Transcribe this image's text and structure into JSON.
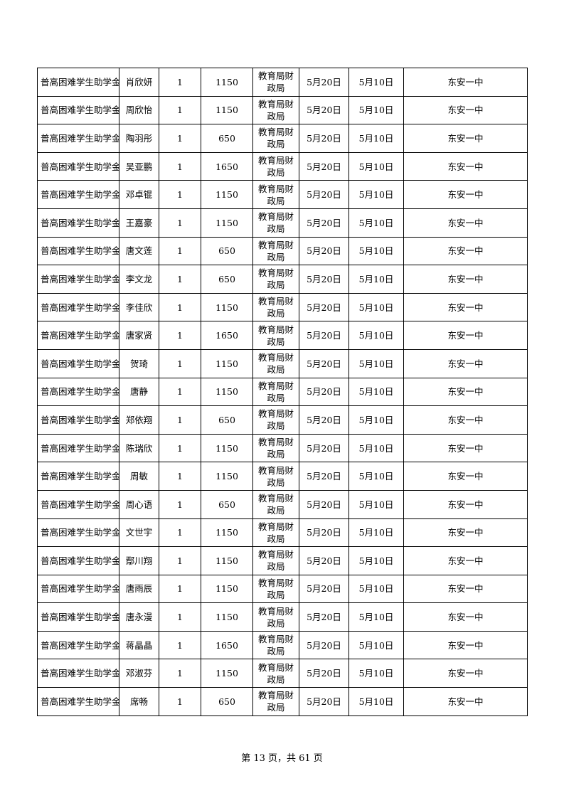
{
  "table": {
    "rows": [
      {
        "project": "普高困难学生助学金",
        "name": "肖欣妍",
        "count": "1",
        "amount": "1150",
        "dept_line1": "教育局财",
        "dept_line2": "政局",
        "date1": "5月20日",
        "date2": "5月10日",
        "school": "东安一中"
      },
      {
        "project": "普高困难学生助学金",
        "name": "周欣怡",
        "count": "1",
        "amount": "1150",
        "dept_line1": "教育局财",
        "dept_line2": "政局",
        "date1": "5月20日",
        "date2": "5月10日",
        "school": "东安一中"
      },
      {
        "project": "普高困难学生助学金",
        "name": "陶羽彤",
        "count": "1",
        "amount": "650",
        "dept_line1": "教育局财",
        "dept_line2": "政局",
        "date1": "5月20日",
        "date2": "5月10日",
        "school": "东安一中"
      },
      {
        "project": "普高困难学生助学金",
        "name": "吴亚鹏",
        "count": "1",
        "amount": "1650",
        "dept_line1": "教育局财",
        "dept_line2": "政局",
        "date1": "5月20日",
        "date2": "5月10日",
        "school": "东安一中"
      },
      {
        "project": "普高困难学生助学金",
        "name": "邓卓锟",
        "count": "1",
        "amount": "1150",
        "dept_line1": "教育局财",
        "dept_line2": "政局",
        "date1": "5月20日",
        "date2": "5月10日",
        "school": "东安一中"
      },
      {
        "project": "普高困难学生助学金",
        "name": "王嘉豪",
        "count": "1",
        "amount": "1150",
        "dept_line1": "教育局财",
        "dept_line2": "政局",
        "date1": "5月20日",
        "date2": "5月10日",
        "school": "东安一中"
      },
      {
        "project": "普高困难学生助学金",
        "name": "唐文莲",
        "count": "1",
        "amount": "650",
        "dept_line1": "教育局财",
        "dept_line2": "政局",
        "date1": "5月20日",
        "date2": "5月10日",
        "school": "东安一中"
      },
      {
        "project": "普高困难学生助学金",
        "name": "李文龙",
        "count": "1",
        "amount": "650",
        "dept_line1": "教育局财",
        "dept_line2": "政局",
        "date1": "5月20日",
        "date2": "5月10日",
        "school": "东安一中"
      },
      {
        "project": "普高困难学生助学金",
        "name": "李佳欣",
        "count": "1",
        "amount": "1150",
        "dept_line1": "教育局财",
        "dept_line2": "政局",
        "date1": "5月20日",
        "date2": "5月10日",
        "school": "东安一中"
      },
      {
        "project": "普高困难学生助学金",
        "name": "唐家贤",
        "count": "1",
        "amount": "1650",
        "dept_line1": "教育局财",
        "dept_line2": "政局",
        "date1": "5月20日",
        "date2": "5月10日",
        "school": "东安一中"
      },
      {
        "project": "普高困难学生助学金",
        "name": "贺琦",
        "count": "1",
        "amount": "1150",
        "dept_line1": "教育局财",
        "dept_line2": "政局",
        "date1": "5月20日",
        "date2": "5月10日",
        "school": "东安一中"
      },
      {
        "project": "普高困难学生助学金",
        "name": "唐静",
        "count": "1",
        "amount": "1150",
        "dept_line1": "教育局财",
        "dept_line2": "政局",
        "date1": "5月20日",
        "date2": "5月10日",
        "school": "东安一中"
      },
      {
        "project": "普高困难学生助学金",
        "name": "郑依翔",
        "count": "1",
        "amount": "650",
        "dept_line1": "教育局财",
        "dept_line2": "政局",
        "date1": "5月20日",
        "date2": "5月10日",
        "school": "东安一中"
      },
      {
        "project": "普高困难学生助学金",
        "name": "陈瑞欣",
        "count": "1",
        "amount": "1150",
        "dept_line1": "教育局财",
        "dept_line2": "政局",
        "date1": "5月20日",
        "date2": "5月10日",
        "school": "东安一中"
      },
      {
        "project": "普高困难学生助学金",
        "name": "周敏",
        "count": "1",
        "amount": "1150",
        "dept_line1": "教育局财",
        "dept_line2": "政局",
        "date1": "5月20日",
        "date2": "5月10日",
        "school": "东安一中"
      },
      {
        "project": "普高困难学生助学金",
        "name": "周心语",
        "count": "1",
        "amount": "650",
        "dept_line1": "教育局财",
        "dept_line2": "政局",
        "date1": "5月20日",
        "date2": "5月10日",
        "school": "东安一中"
      },
      {
        "project": "普高困难学生助学金",
        "name": "文世宇",
        "count": "1",
        "amount": "1150",
        "dept_line1": "教育局财",
        "dept_line2": "政局",
        "date1": "5月20日",
        "date2": "5月10日",
        "school": "东安一中"
      },
      {
        "project": "普高困难学生助学金",
        "name": "鄢川翔",
        "count": "1",
        "amount": "1150",
        "dept_line1": "教育局财",
        "dept_line2": "政局",
        "date1": "5月20日",
        "date2": "5月10日",
        "school": "东安一中"
      },
      {
        "project": "普高困难学生助学金",
        "name": "唐雨辰",
        "count": "1",
        "amount": "1150",
        "dept_line1": "教育局财",
        "dept_line2": "政局",
        "date1": "5月20日",
        "date2": "5月10日",
        "school": "东安一中"
      },
      {
        "project": "普高困难学生助学金",
        "name": "唐永漫",
        "count": "1",
        "amount": "1150",
        "dept_line1": "教育局财",
        "dept_line2": "政局",
        "date1": "5月20日",
        "date2": "5月10日",
        "school": "东安一中"
      },
      {
        "project": "普高困难学生助学金",
        "name": "蒋晶晶",
        "count": "1",
        "amount": "1650",
        "dept_line1": "教育局财",
        "dept_line2": "政局",
        "date1": "5月20日",
        "date2": "5月10日",
        "school": "东安一中"
      },
      {
        "project": "普高困难学生助学金",
        "name": "邓淑芬",
        "count": "1",
        "amount": "1150",
        "dept_line1": "教育局财",
        "dept_line2": "政局",
        "date1": "5月20日",
        "date2": "5月10日",
        "school": "东安一中"
      },
      {
        "project": "普高困难学生助学金",
        "name": "席畅",
        "count": "1",
        "amount": "650",
        "dept_line1": "教育局财",
        "dept_line2": "政局",
        "date1": "5月20日",
        "date2": "5月10日",
        "school": "东安一中"
      }
    ]
  },
  "footer": {
    "page_label": "第 13 页，共 61 页"
  }
}
